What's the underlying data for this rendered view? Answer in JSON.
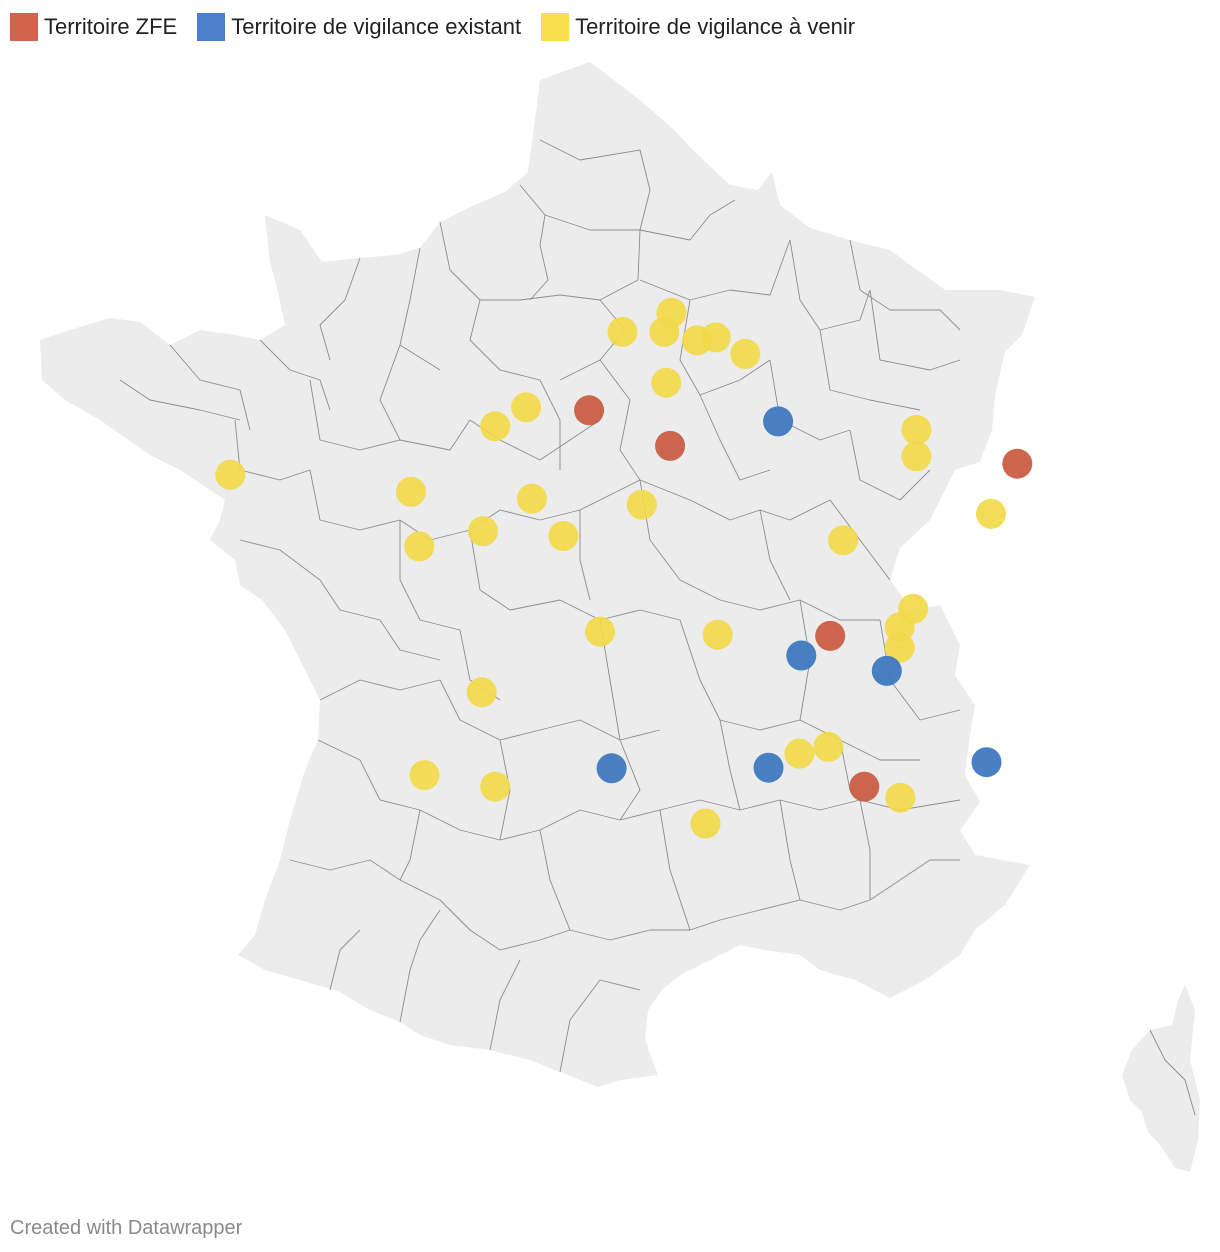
{
  "legend": {
    "items": [
      {
        "label": "Territoire ZFE",
        "color": "#d1644a"
      },
      {
        "label": "Territoire de vigilance existant",
        "color": "#4a80c8"
      },
      {
        "label": "Territoire de vigilance à venir",
        "color": "#f7e04b"
      }
    ]
  },
  "map": {
    "land_color": "#ececec",
    "border_color": "#8c8c8c",
    "marker_colors": {
      "zfe": "#c95f45",
      "existant": "#3f78c0",
      "avenir": "#f2d94a"
    },
    "markers": [
      {
        "type": "avenir",
        "lon": 1.61,
        "lat": 50.72
      },
      {
        "type": "avenir",
        "lon": 2.37,
        "lat": 51.03
      },
      {
        "type": "avenir",
        "lon": 2.26,
        "lat": 50.72
      },
      {
        "type": "avenir",
        "lon": 2.77,
        "lat": 50.58
      },
      {
        "type": "avenir",
        "lon": 3.06,
        "lat": 50.63
      },
      {
        "type": "avenir",
        "lon": 3.52,
        "lat": 50.36
      },
      {
        "type": "avenir",
        "lon": 2.29,
        "lat": 49.89
      },
      {
        "type": "avenir",
        "lon": 0.11,
        "lat": 49.49
      },
      {
        "type": "zfe",
        "lon": 1.09,
        "lat": 49.44
      },
      {
        "type": "existant",
        "lon": 4.03,
        "lat": 49.26
      },
      {
        "type": "avenir",
        "lon": -0.37,
        "lat": 49.18
      },
      {
        "type": "zfe",
        "lon": 2.35,
        "lat": 48.86
      },
      {
        "type": "avenir",
        "lon": 6.18,
        "lat": 49.12
      },
      {
        "type": "avenir",
        "lon": 6.18,
        "lat": 48.69
      },
      {
        "type": "zfe",
        "lon": 7.75,
        "lat": 48.57
      },
      {
        "type": "avenir",
        "lon": -4.49,
        "lat": 48.39
      },
      {
        "type": "avenir",
        "lon": -1.68,
        "lat": 48.11
      },
      {
        "type": "avenir",
        "lon": 0.2,
        "lat": 48.0
      },
      {
        "type": "avenir",
        "lon": 1.91,
        "lat": 47.9
      },
      {
        "type": "avenir",
        "lon": 7.34,
        "lat": 47.75
      },
      {
        "type": "avenir",
        "lon": -0.56,
        "lat": 47.47
      },
      {
        "type": "avenir",
        "lon": 0.69,
        "lat": 47.39
      },
      {
        "type": "avenir",
        "lon": 5.04,
        "lat": 47.32
      },
      {
        "type": "avenir",
        "lon": -1.55,
        "lat": 47.22
      },
      {
        "type": "avenir",
        "lon": 6.13,
        "lat": 46.2
      },
      {
        "type": "avenir",
        "lon": 5.92,
        "lat": 45.9
      },
      {
        "type": "zfe",
        "lon": 4.84,
        "lat": 45.76
      },
      {
        "type": "avenir",
        "lon": 1.26,
        "lat": 45.83
      },
      {
        "type": "avenir",
        "lon": 3.09,
        "lat": 45.78
      },
      {
        "type": "avenir",
        "lon": 5.92,
        "lat": 45.57
      },
      {
        "type": "existant",
        "lon": 4.39,
        "lat": 45.44
      },
      {
        "type": "existant",
        "lon": 5.72,
        "lat": 45.19
      },
      {
        "type": "avenir",
        "lon": -0.58,
        "lat": 44.84
      },
      {
        "type": "avenir",
        "lon": 4.81,
        "lat": 43.95
      },
      {
        "type": "avenir",
        "lon": 4.36,
        "lat": 43.84
      },
      {
        "type": "existant",
        "lon": 7.27,
        "lat": 43.7
      },
      {
        "type": "existant",
        "lon": 1.44,
        "lat": 43.6
      },
      {
        "type": "existant",
        "lon": 3.88,
        "lat": 43.61
      },
      {
        "type": "avenir",
        "lon": -1.47,
        "lat": 43.49
      },
      {
        "type": "avenir",
        "lon": -0.37,
        "lat": 43.3
      },
      {
        "type": "zfe",
        "lon": 5.37,
        "lat": 43.3
      },
      {
        "type": "avenir",
        "lon": 5.93,
        "lat": 43.12
      },
      {
        "type": "avenir",
        "lon": 2.9,
        "lat": 42.7
      }
    ]
  },
  "footer": {
    "credit": "Created with Datawrapper"
  }
}
